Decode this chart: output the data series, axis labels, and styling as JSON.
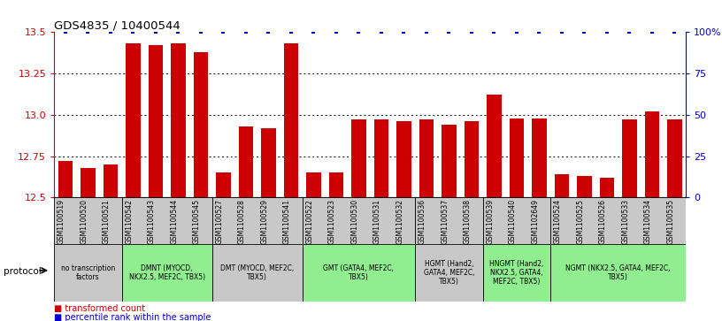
{
  "title": "GDS4835 / 10400544",
  "samples": [
    "GSM1100519",
    "GSM1100520",
    "GSM1100521",
    "GSM1100542",
    "GSM1100543",
    "GSM1100544",
    "GSM1100545",
    "GSM1100527",
    "GSM1100528",
    "GSM1100529",
    "GSM1100541",
    "GSM1100522",
    "GSM1100523",
    "GSM1100530",
    "GSM1100531",
    "GSM1100532",
    "GSM1100536",
    "GSM1100537",
    "GSM1100538",
    "GSM1100539",
    "GSM1100540",
    "GSM1102649",
    "GSM1100524",
    "GSM1100525",
    "GSM1100526",
    "GSM1100533",
    "GSM1100534",
    "GSM1100535"
  ],
  "values": [
    12.72,
    12.68,
    12.7,
    13.43,
    13.42,
    13.43,
    13.38,
    12.65,
    12.93,
    12.92,
    13.43,
    12.65,
    12.65,
    12.97,
    12.97,
    12.96,
    12.97,
    12.94,
    12.96,
    13.12,
    12.98,
    12.98,
    12.64,
    12.63,
    12.62,
    12.97,
    13.02,
    12.97
  ],
  "ylim_left": [
    12.5,
    13.5
  ],
  "ylim_right": [
    0,
    100
  ],
  "yticks_left": [
    12.5,
    12.75,
    13.0,
    13.25,
    13.5
  ],
  "yticks_right": [
    0,
    25,
    50,
    75,
    100
  ],
  "ytick_labels_right": [
    "0",
    "25",
    "50",
    "75",
    "100%"
  ],
  "bar_color": "#cc0000",
  "percentile_color": "#0000cc",
  "protocol_groups": [
    {
      "label": "no transcription\nfactors",
      "start": 0,
      "end": 3,
      "color": "#c8c8c8"
    },
    {
      "label": "DMNT (MYOCD,\nNKX2.5, MEF2C, TBX5)",
      "start": 3,
      "end": 7,
      "color": "#90ee90"
    },
    {
      "label": "DMT (MYOCD, MEF2C,\nTBX5)",
      "start": 7,
      "end": 11,
      "color": "#c8c8c8"
    },
    {
      "label": "GMT (GATA4, MEF2C,\nTBX5)",
      "start": 11,
      "end": 16,
      "color": "#90ee90"
    },
    {
      "label": "HGMT (Hand2,\nGATA4, MEF2C,\nTBX5)",
      "start": 16,
      "end": 19,
      "color": "#c8c8c8"
    },
    {
      "label": "HNGMT (Hand2,\nNKX2.5, GATA4,\nMEF2C, TBX5)",
      "start": 19,
      "end": 22,
      "color": "#90ee90"
    },
    {
      "label": "NGMT (NKX2.5, GATA4, MEF2C,\nTBX5)",
      "start": 22,
      "end": 28,
      "color": "#90ee90"
    }
  ],
  "protocol_label": "protocol",
  "legend_items": [
    {
      "label": "transformed count",
      "color": "#cc0000"
    },
    {
      "label": "percentile rank within the sample",
      "color": "#0000cc"
    }
  ],
  "background_color": "#ffffff",
  "grid_color": "#000000"
}
